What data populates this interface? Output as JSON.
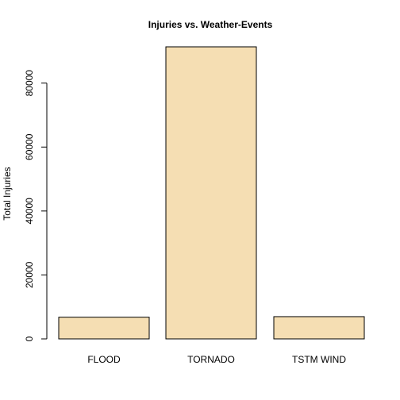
{
  "chart_data": {
    "type": "bar",
    "title": "Injuries vs. Weather-Events",
    "xlabel": "",
    "ylabel": "Total Injuries",
    "categories": [
      "FLOOD",
      "TORNADO",
      "TSTM WIND"
    ],
    "values": [
      6789,
      91346,
      6957
    ],
    "ylim": [
      0,
      91346
    ],
    "yticks": [
      0,
      20000,
      40000,
      60000,
      80000
    ],
    "bar_color": "#F5DEB3",
    "bar_border_color": "#000000",
    "grid": false,
    "legend": "none"
  }
}
